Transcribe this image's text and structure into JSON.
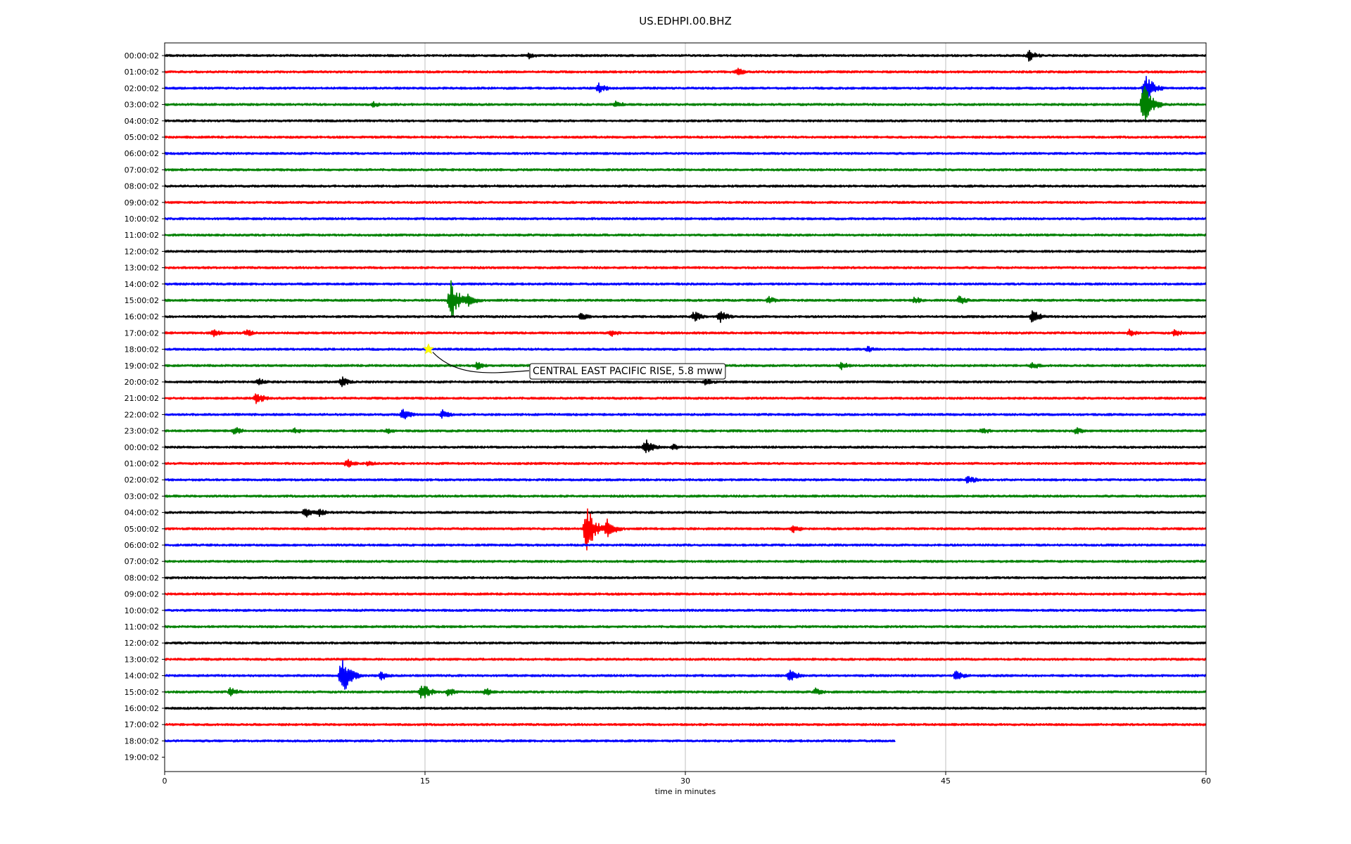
{
  "chart_data": {
    "type": "line",
    "title": "US.EDHPI.00.BHZ",
    "xlabel": "time in minutes",
    "ylabel": "",
    "xlim": [
      0,
      60
    ],
    "x_ticks": [
      "0",
      "15",
      "30",
      "45",
      "60"
    ],
    "x_tick_values": [
      0,
      15,
      30,
      45,
      60
    ],
    "grid": "vertical",
    "row_labels": [
      "00:00:02",
      "01:00:02",
      "02:00:02",
      "03:00:02",
      "04:00:02",
      "05:00:02",
      "06:00:02",
      "07:00:02",
      "08:00:02",
      "09:00:02",
      "10:00:02",
      "11:00:02",
      "12:00:02",
      "13:00:02",
      "14:00:02",
      "15:00:02",
      "16:00:02",
      "17:00:02",
      "18:00:02",
      "19:00:02",
      "20:00:02",
      "21:00:02",
      "22:00:02",
      "23:00:02",
      "00:00:02",
      "01:00:02",
      "02:00:02",
      "03:00:02",
      "04:00:02",
      "05:00:02",
      "06:00:02",
      "07:00:02",
      "08:00:02",
      "09:00:02",
      "10:00:02",
      "11:00:02",
      "12:00:02",
      "13:00:02",
      "14:00:02",
      "15:00:02",
      "16:00:02",
      "17:00:02",
      "18:00:02",
      "19:00:02"
    ],
    "trace_colors": [
      "#000000",
      "#ff0000",
      "#0000ff",
      "#008000"
    ],
    "last_trace_end_minute": 42.1,
    "bursts": [
      {
        "row": 0,
        "minute": 21,
        "amp": 5
      },
      {
        "row": 0,
        "minute": 49.8,
        "amp": 9
      },
      {
        "row": 1,
        "minute": 33,
        "amp": 6
      },
      {
        "row": 2,
        "minute": 25,
        "amp": 8
      },
      {
        "row": 2,
        "minute": 56.5,
        "amp": 22
      },
      {
        "row": 3,
        "minute": 12,
        "amp": 5
      },
      {
        "row": 3,
        "minute": 26,
        "amp": 6
      },
      {
        "row": 3,
        "minute": 56.4,
        "amp": 30
      },
      {
        "row": 15,
        "minute": 16.5,
        "amp": 28
      },
      {
        "row": 15,
        "minute": 17.5,
        "amp": 10
      },
      {
        "row": 15,
        "minute": 34.8,
        "amp": 6
      },
      {
        "row": 15,
        "minute": 43.2,
        "amp": 6
      },
      {
        "row": 15,
        "minute": 45.8,
        "amp": 7
      },
      {
        "row": 16,
        "minute": 24,
        "amp": 6
      },
      {
        "row": 16,
        "minute": 30.5,
        "amp": 8
      },
      {
        "row": 16,
        "minute": 32,
        "amp": 9
      },
      {
        "row": 16,
        "minute": 50,
        "amp": 10
      },
      {
        "row": 17,
        "minute": 2.8,
        "amp": 6
      },
      {
        "row": 17,
        "minute": 4.7,
        "amp": 6
      },
      {
        "row": 17,
        "minute": 25.7,
        "amp": 6
      },
      {
        "row": 17,
        "minute": 55.6,
        "amp": 6
      },
      {
        "row": 17,
        "minute": 58.2,
        "amp": 6
      },
      {
        "row": 18,
        "minute": 40.5,
        "amp": 5
      },
      {
        "row": 19,
        "minute": 18,
        "amp": 6
      },
      {
        "row": 19,
        "minute": 39,
        "amp": 6
      },
      {
        "row": 19,
        "minute": 50,
        "amp": 6
      },
      {
        "row": 20,
        "minute": 5.4,
        "amp": 6
      },
      {
        "row": 20,
        "minute": 10.2,
        "amp": 8
      },
      {
        "row": 20,
        "minute": 31.2,
        "amp": 6
      },
      {
        "row": 21,
        "minute": 5.3,
        "amp": 9
      },
      {
        "row": 22,
        "minute": 13.7,
        "amp": 9
      },
      {
        "row": 22,
        "minute": 16,
        "amp": 7
      },
      {
        "row": 23,
        "minute": 4,
        "amp": 7
      },
      {
        "row": 23,
        "minute": 7.5,
        "amp": 5
      },
      {
        "row": 23,
        "minute": 12.8,
        "amp": 5
      },
      {
        "row": 23,
        "minute": 47.1,
        "amp": 6
      },
      {
        "row": 23,
        "minute": 52.5,
        "amp": 6
      },
      {
        "row": 24,
        "minute": 27.7,
        "amp": 12
      },
      {
        "row": 24,
        "minute": 29.3,
        "amp": 5
      },
      {
        "row": 25,
        "minute": 10.5,
        "amp": 7
      },
      {
        "row": 25,
        "minute": 11.7,
        "amp": 5
      },
      {
        "row": 26,
        "minute": 46.3,
        "amp": 7
      },
      {
        "row": 28,
        "minute": 8.1,
        "amp": 8
      },
      {
        "row": 28,
        "minute": 8.9,
        "amp": 6
      },
      {
        "row": 29,
        "minute": 24.3,
        "amp": 34
      },
      {
        "row": 29,
        "minute": 25.5,
        "amp": 14
      },
      {
        "row": 29,
        "minute": 36.2,
        "amp": 7
      },
      {
        "row": 38,
        "minute": 10.2,
        "amp": 32
      },
      {
        "row": 38,
        "minute": 12.5,
        "amp": 7
      },
      {
        "row": 38,
        "minute": 36,
        "amp": 10
      },
      {
        "row": 38,
        "minute": 45.6,
        "amp": 8
      },
      {
        "row": 39,
        "minute": 3.8,
        "amp": 7
      },
      {
        "row": 39,
        "minute": 14.8,
        "amp": 14
      },
      {
        "row": 39,
        "minute": 16.3,
        "amp": 7
      },
      {
        "row": 39,
        "minute": 18.5,
        "amp": 6
      },
      {
        "row": 39,
        "minute": 37.5,
        "amp": 6
      }
    ],
    "annotations": [
      {
        "text": "CENTRAL EAST PACIFIC RISE, 5.8 mww",
        "row": 18,
        "minute": 15.2,
        "marker": "star",
        "marker_color": "#ffff00"
      }
    ]
  }
}
